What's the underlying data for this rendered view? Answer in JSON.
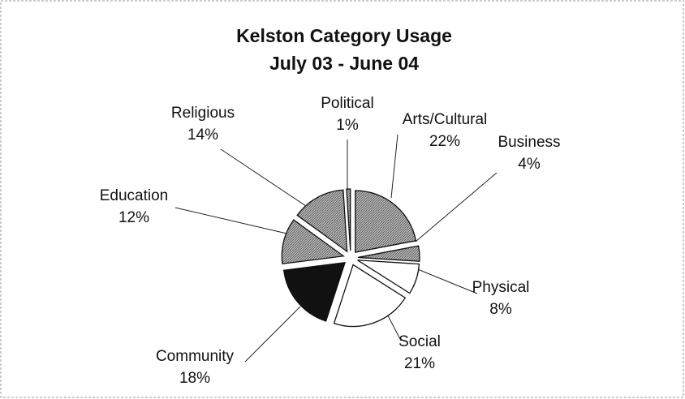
{
  "chart_data": {
    "type": "pie",
    "title": "Kelston Category Usage",
    "subtitle": "July 03 - June 04",
    "categories": [
      "Arts/Cultural",
      "Business",
      "Physical",
      "Social",
      "Community",
      "Education",
      "Religious",
      "Political"
    ],
    "values": [
      22,
      4,
      8,
      21,
      18,
      12,
      14,
      1
    ],
    "value_labels": [
      "22%",
      "4%",
      "8%",
      "21%",
      "18%",
      "12%",
      "14%",
      "1%"
    ],
    "colors": [
      "#a0a0a0",
      "#a0a0a0",
      "#ffffff",
      "#ffffff",
      "#111111",
      "#a0a0a0",
      "#a0a0a0",
      "#a0a0a0"
    ]
  }
}
